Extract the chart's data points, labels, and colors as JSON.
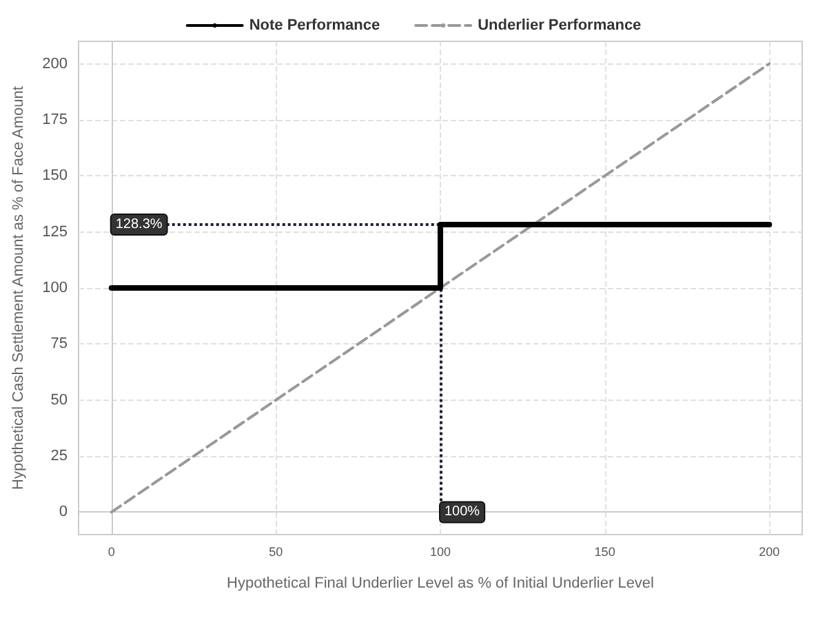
{
  "chart_data": {
    "type": "line",
    "xlabel": "Hypothetical Final Underlier Level as % of Initial Underlier Level",
    "ylabel": "Hypothetical Cash Settlement Amount as % of Face Amount",
    "series": [
      {
        "name": "Note Performance",
        "color": "#000000",
        "x": [
          0,
          100,
          100,
          200
        ],
        "values": [
          100,
          100,
          128.3,
          128.3
        ],
        "line_style": "solid"
      },
      {
        "name": "Underlier Performance",
        "color": "#999999",
        "x": [
          0,
          200
        ],
        "values": [
          0,
          200
        ],
        "line_style": "dashed"
      }
    ],
    "ref_lines": [
      {
        "axis": "y",
        "value": 128.3,
        "label": "128.3%",
        "line_style": "dotted",
        "color": "#1a1f3a"
      },
      {
        "axis": "x",
        "value": 100,
        "label": "100%",
        "line_style": "dotted",
        "color": "#1a1f3a"
      }
    ],
    "xlim": [
      -10,
      210
    ],
    "xticks": [
      0,
      50,
      100,
      150,
      200
    ],
    "ylim": [
      -10,
      210
    ],
    "yticks": [
      0,
      25,
      50,
      75,
      100,
      125,
      150,
      175,
      200
    ],
    "grid": true,
    "legend": "top",
    "marker": "none"
  }
}
